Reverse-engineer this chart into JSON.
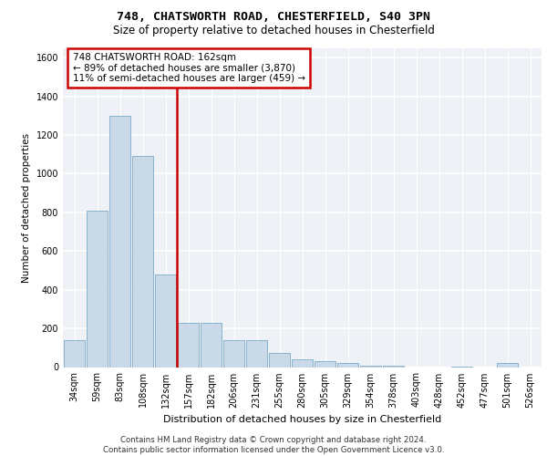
{
  "title_line1": "748, CHATSWORTH ROAD, CHESTERFIELD, S40 3PN",
  "title_line2": "Size of property relative to detached houses in Chesterfield",
  "xlabel": "Distribution of detached houses by size in Chesterfield",
  "ylabel": "Number of detached properties",
  "footnote": "Contains HM Land Registry data © Crown copyright and database right 2024.\nContains public sector information licensed under the Open Government Licence v3.0.",
  "bar_labels": [
    "34sqm",
    "59sqm",
    "83sqm",
    "108sqm",
    "132sqm",
    "157sqm",
    "182sqm",
    "206sqm",
    "231sqm",
    "255sqm",
    "280sqm",
    "305sqm",
    "329sqm",
    "354sqm",
    "378sqm",
    "403sqm",
    "428sqm",
    "452sqm",
    "477sqm",
    "501sqm",
    "526sqm"
  ],
  "bar_values": [
    140,
    810,
    1300,
    1090,
    480,
    230,
    230,
    140,
    140,
    75,
    40,
    30,
    20,
    8,
    5,
    0,
    0,
    3,
    0,
    20,
    0
  ],
  "bar_color": "#c9d9e8",
  "bar_edge_color": "#7aaac8",
  "ylim": [
    0,
    1650
  ],
  "yticks": [
    0,
    200,
    400,
    600,
    800,
    1000,
    1200,
    1400,
    1600
  ],
  "property_size": 162,
  "vline_bar_index": 5,
  "annotation_text": "748 CHATSWORTH ROAD: 162sqm\n← 89% of detached houses are smaller (3,870)\n11% of semi-detached houses are larger (459) →",
  "bg_color": "#eef2f7",
  "grid_color": "#ffffff",
  "annotation_box_color": "#ffffff",
  "annotation_box_edge": "#cc0000",
  "vline_color": "#cc0000",
  "title1_fontsize": 9.5,
  "title2_fontsize": 8.5,
  "footnote_fontsize": 6.2,
  "ylabel_fontsize": 7.5,
  "xlabel_fontsize": 8.0,
  "tick_fontsize": 7.0,
  "annotation_fontsize": 7.5
}
